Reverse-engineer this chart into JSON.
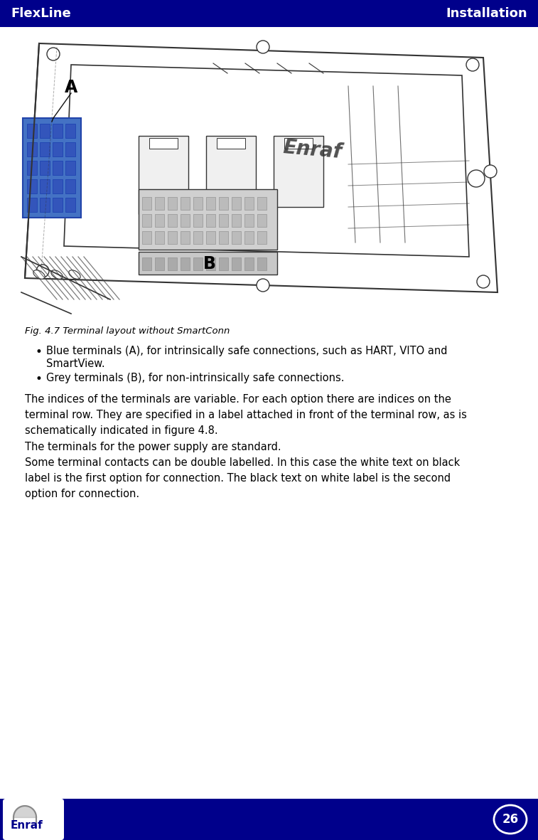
{
  "header_bg": "#00008B",
  "header_text_color": "#FFFFFF",
  "header_left": "FlexLine",
  "header_right": "Installation",
  "header_fontsize": 13,
  "footer_bg": "#00008B",
  "footer_text_left": "Enraf",
  "footer_page_num": "26",
  "footer_fontsize": 11,
  "bg_color": "#FFFFFF",
  "fig_caption": "Fig. 4.7 Terminal layout without SmartConn",
  "fig_caption_fontsize": 9.5,
  "fig_caption_style": "italic",
  "bullet1_line1": "Blue terminals (A), for intrinsically safe connections, such as HART, VITO and",
  "bullet1_line2": "SmartView.",
  "bullet2": "Grey terminals (B), for non-intrinsically safe connections.",
  "bullet_fontsize": 10.5,
  "body_text": "The indices of the terminals are variable. For each option there are indices on the\nterminal row. They are specified in a label attached in front of the terminal row, as is\nschematically indicated in figure 4.8.\nThe terminals for the power supply are standard.\nSome terminal contacts can be double labelled. In this case the white text on black\nlabel is the first option for connection. The black text on white label is the second\noption for connection.",
  "body_fontsize": 10.5,
  "blue_terminal_color": "#4472C4",
  "line_color": "#333333",
  "dark_line_color": "#111111"
}
